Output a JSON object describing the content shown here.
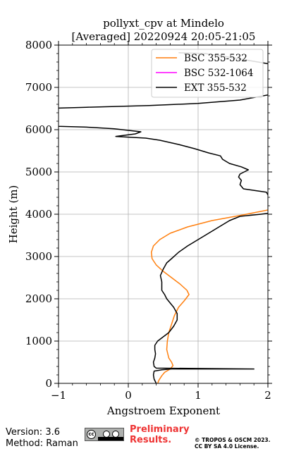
{
  "chart_data": {
    "type": "line",
    "title": "pollyxt_cpv at Mindelo",
    "subtitle": "[Averaged] 20220924 20:05-21:05",
    "xlabel": "Angstroem Exponent",
    "ylabel": "Height (m)",
    "xlim": [
      -1,
      2
    ],
    "ylim": [
      0,
      8000
    ],
    "xticks": [
      "−1",
      "0",
      "1",
      "2"
    ],
    "yticks": [
      "0",
      "1000",
      "2000",
      "3000",
      "4000",
      "5000",
      "6000",
      "7000",
      "8000"
    ],
    "grid": true,
    "legend_position": "top-right",
    "series": [
      {
        "name": "BSC 355-532",
        "color": "#ff7f0e",
        "points": [
          [
            0.42,
            0
          ],
          [
            0.44,
            80
          ],
          [
            0.48,
            180
          ],
          [
            0.52,
            260
          ],
          [
            0.6,
            340
          ],
          [
            0.64,
            420
          ],
          [
            0.62,
            500
          ],
          [
            0.58,
            600
          ],
          [
            0.55,
            800
          ],
          [
            0.56,
            1000
          ],
          [
            0.58,
            1200
          ],
          [
            0.62,
            1400
          ],
          [
            0.66,
            1600
          ],
          [
            0.72,
            1800
          ],
          [
            0.8,
            1950
          ],
          [
            0.87,
            2100
          ],
          [
            0.84,
            2200
          ],
          [
            0.74,
            2350
          ],
          [
            0.62,
            2500
          ],
          [
            0.5,
            2650
          ],
          [
            0.4,
            2800
          ],
          [
            0.34,
            2950
          ],
          [
            0.33,
            3100
          ],
          [
            0.36,
            3250
          ],
          [
            0.45,
            3400
          ],
          [
            0.6,
            3550
          ],
          [
            0.85,
            3700
          ],
          [
            1.2,
            3850
          ],
          [
            1.6,
            3970
          ],
          [
            2.0,
            4100
          ]
        ]
      },
      {
        "name": "BSC 532-1064",
        "color": "#ff00ff",
        "points": []
      },
      {
        "name": "EXT 355-532",
        "color": "#000000",
        "points": [
          [
            0.4,
            0
          ],
          [
            0.37,
            100
          ],
          [
            0.36,
            200
          ],
          [
            0.37,
            290
          ],
          [
            0.48,
            320
          ],
          [
            0.62,
            340
          ],
          [
            1.8,
            340
          ],
          [
            0.4,
            360
          ],
          [
            0.37,
            400
          ],
          [
            0.36,
            500
          ],
          [
            0.38,
            600
          ],
          [
            0.39,
            700
          ],
          [
            0.38,
            800
          ],
          [
            0.38,
            900
          ],
          [
            0.42,
            1000
          ],
          [
            0.5,
            1100
          ],
          [
            0.58,
            1200
          ],
          [
            0.65,
            1350
          ],
          [
            0.7,
            1500
          ],
          [
            0.7,
            1650
          ],
          [
            0.65,
            1800
          ],
          [
            0.6,
            1900
          ],
          [
            0.55,
            2000
          ],
          [
            0.52,
            2100
          ],
          [
            0.48,
            2200
          ],
          [
            0.48,
            2400
          ],
          [
            0.46,
            2550
          ],
          [
            0.5,
            2700
          ],
          [
            0.55,
            2850
          ],
          [
            0.62,
            2950
          ],
          [
            0.72,
            3100
          ],
          [
            0.85,
            3250
          ],
          [
            1.0,
            3400
          ],
          [
            1.15,
            3550
          ],
          [
            1.3,
            3700
          ],
          [
            1.45,
            3850
          ],
          [
            1.6,
            3950
          ],
          [
            1.9,
            4000
          ],
          [
            2.0,
            4020
          ],
          [
            2.05,
            4300
          ],
          [
            1.98,
            4520
          ],
          [
            1.65,
            4600
          ],
          [
            1.6,
            4700
          ],
          [
            1.62,
            4800
          ],
          [
            1.58,
            4880
          ],
          [
            1.6,
            4950
          ],
          [
            1.72,
            5050
          ],
          [
            1.62,
            5120
          ],
          [
            1.45,
            5200
          ],
          [
            1.35,
            5300
          ],
          [
            1.32,
            5380
          ],
          [
            1.15,
            5450
          ],
          [
            0.95,
            5550
          ],
          [
            0.72,
            5650
          ],
          [
            0.45,
            5750
          ],
          [
            0.25,
            5800
          ],
          [
            -0.18,
            5840
          ],
          [
            0.1,
            5900
          ],
          [
            0.18,
            5950
          ],
          [
            -0.2,
            6020
          ],
          [
            -0.6,
            6060
          ],
          [
            -1.0,
            6080
          ],
          [
            -1.05,
            6200
          ],
          [
            -1.0,
            6510
          ],
          [
            -0.6,
            6530
          ],
          [
            0.3,
            6570
          ],
          [
            1.0,
            6620
          ],
          [
            1.6,
            6700
          ],
          [
            2.0,
            6820
          ],
          [
            2.05,
            7200
          ],
          [
            2.0,
            7560
          ],
          [
            1.5,
            7700
          ],
          [
            1.1,
            7800
          ],
          [
            0.72,
            7820
          ]
        ]
      }
    ]
  },
  "footer": {
    "version": "Version: 3.6",
    "method": "Method: Raman",
    "preliminary_line1": "Preliminary",
    "preliminary_line2": "Results.",
    "copyright_line1": "© TROPOS & OSCM 2023.",
    "copyright_line2": "CC BY SA 4.0 License."
  }
}
